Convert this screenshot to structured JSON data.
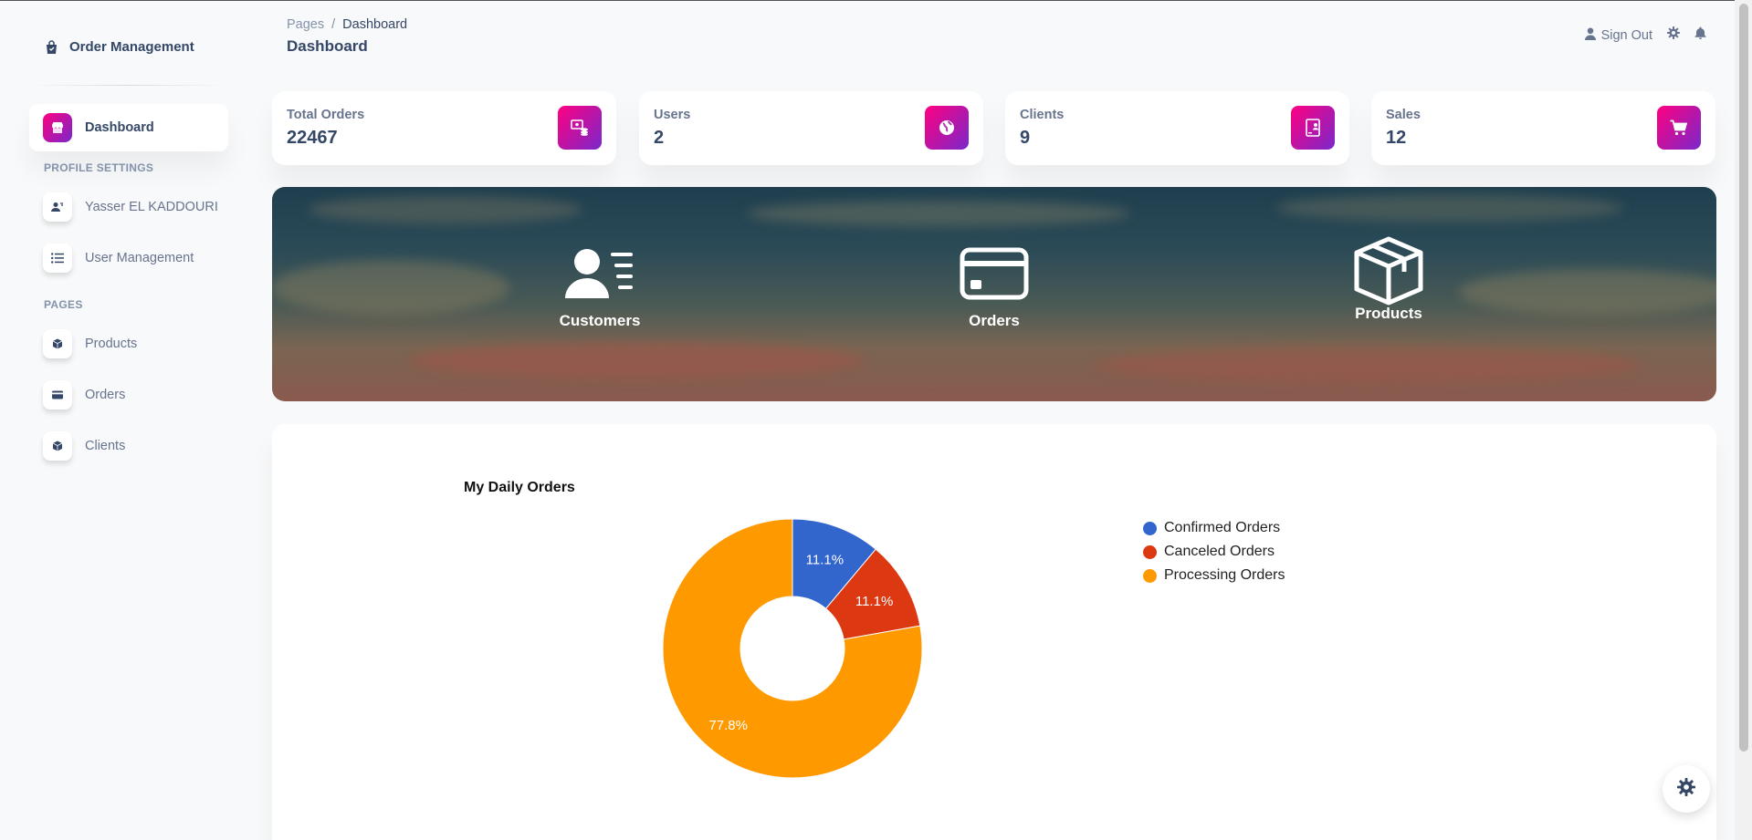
{
  "sidebar": {
    "brand": "Order Management",
    "items": [
      {
        "label": "Dashboard",
        "icon": "shop-icon",
        "active": true
      },
      {
        "label": "Yasser EL KADDOURI",
        "icon": "user-icon"
      },
      {
        "label": "User Management",
        "icon": "list-icon"
      },
      {
        "label": "Products",
        "icon": "box-icon"
      },
      {
        "label": "Orders",
        "icon": "credit-card-icon"
      },
      {
        "label": "Clients",
        "icon": "box-icon"
      }
    ],
    "sections": {
      "profile": "PROFILE SETTINGS",
      "pages": "PAGES"
    }
  },
  "header": {
    "breadcrumb_root": "Pages",
    "breadcrumb_sep": "/",
    "breadcrumb_current": "Dashboard",
    "title": "Dashboard",
    "sign_out": "Sign Out"
  },
  "stats": [
    {
      "label": "Total Orders",
      "value": "22467",
      "icon": "money-coins-icon"
    },
    {
      "label": "Users",
      "value": "2",
      "icon": "world-icon"
    },
    {
      "label": "Clients",
      "value": "9",
      "icon": "contact-icon"
    },
    {
      "label": "Sales",
      "value": "12",
      "icon": "cart-icon"
    }
  ],
  "banner": {
    "items": [
      {
        "label": "Customers",
        "icon": "customers-icon"
      },
      {
        "label": "Orders",
        "icon": "credit-card-icon"
      },
      {
        "label": "Products",
        "icon": "box-icon"
      }
    ]
  },
  "chart_data": {
    "type": "pie",
    "title": "My Daily Orders",
    "donut": true,
    "categories": [
      "Confirmed Orders",
      "Canceled Orders",
      "Processing Orders"
    ],
    "values": [
      11.1,
      11.1,
      77.8
    ],
    "labels": [
      "11.1%",
      "11.1%",
      "77.8%"
    ],
    "colors": [
      "#3366cc",
      "#dc3912",
      "#ff9900"
    ],
    "legend_position": "right"
  },
  "colors": {
    "accent_gradient_start": "#7928ca",
    "accent_gradient_end": "#ff0080",
    "text_primary": "#344767",
    "text_secondary": "#67748e"
  }
}
